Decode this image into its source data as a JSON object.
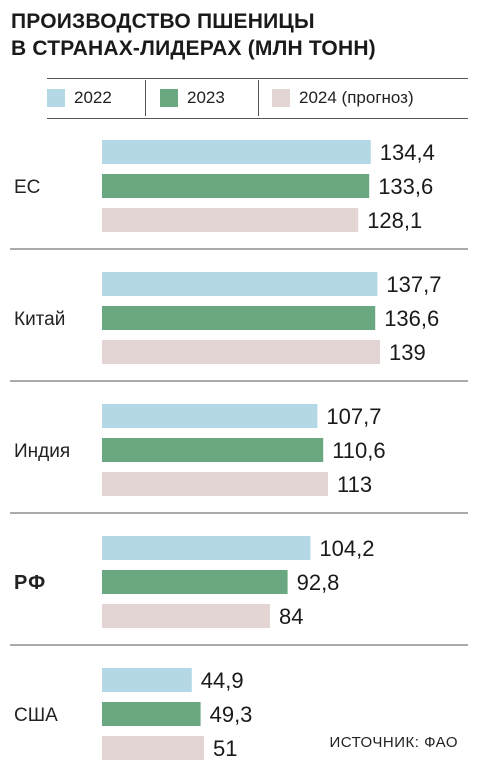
{
  "chart_data": {
    "type": "bar",
    "orientation": "horizontal",
    "title_lines": [
      "ПРОИЗВОДСТВО ПШЕНИЦЫ",
      "В СТРАНАХ-ЛИДЕРАХ (МЛН ТОНН)"
    ],
    "categories": [
      "ЕС",
      "Китай",
      "Индия",
      "РФ",
      "США"
    ],
    "highlight_category": "РФ",
    "series": [
      {
        "name": "2022",
        "color": "#b5d8e6",
        "values": [
          134.4,
          137.7,
          107.7,
          104.2,
          44.9
        ],
        "labels": [
          "134,4",
          "137,7",
          "107,7",
          "104,2",
          "44,9"
        ]
      },
      {
        "name": "2023",
        "color": "#6aa882",
        "values": [
          133.6,
          136.6,
          110.6,
          92.8,
          49.3
        ],
        "labels": [
          "133,6",
          "136,6",
          "110,6",
          "92,8",
          "49,3"
        ]
      },
      {
        "name": "2024 (прогноз)",
        "color": "#e3d5d3",
        "values": [
          128.1,
          139,
          113,
          84,
          51
        ],
        "labels": [
          "128,1",
          "139",
          "113",
          "84",
          "51"
        ]
      }
    ],
    "legend_position": "top",
    "grid": false,
    "source": "ИСТОЧНИК: ФАО"
  }
}
